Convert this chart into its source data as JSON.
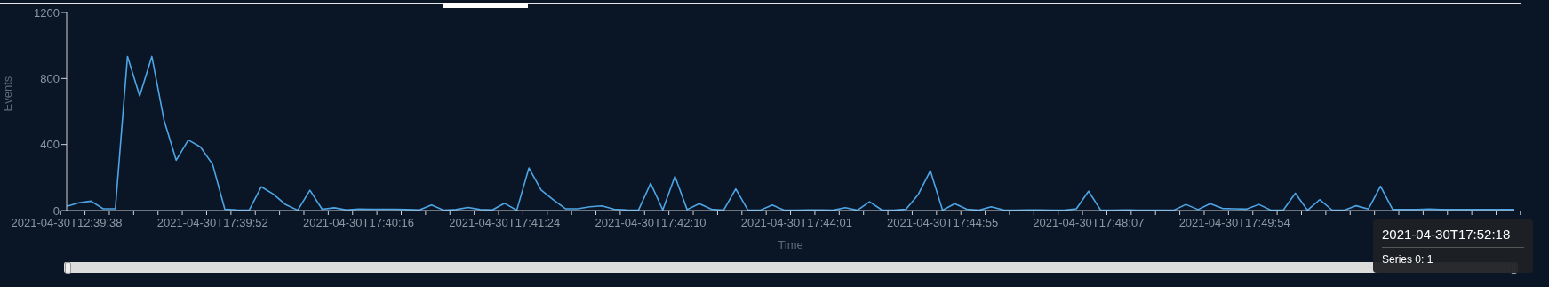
{
  "chart_data": {
    "type": "line",
    "xlabel": "Time",
    "ylabel": "Events",
    "categories": [
      "2021-04-30T12:39:38",
      null,
      null,
      null,
      null,
      null,
      null,
      null,
      null,
      null,
      null,
      null,
      "2021-04-30T17:39:52",
      null,
      null,
      null,
      null,
      null,
      null,
      null,
      null,
      null,
      null,
      null,
      "2021-04-30T17:40:16",
      null,
      null,
      null,
      null,
      null,
      null,
      null,
      null,
      null,
      null,
      null,
      "2021-04-30T17:41:24",
      null,
      null,
      null,
      null,
      null,
      null,
      null,
      null,
      null,
      null,
      null,
      "2021-04-30T17:42:10",
      null,
      null,
      null,
      null,
      null,
      null,
      null,
      null,
      null,
      null,
      null,
      "2021-04-30T17:44:01",
      null,
      null,
      null,
      null,
      null,
      null,
      null,
      null,
      null,
      null,
      null,
      "2021-04-30T17:44:55",
      null,
      null,
      null,
      null,
      null,
      null,
      null,
      null,
      null,
      null,
      null,
      "2021-04-30T17:48:07",
      null,
      null,
      null,
      null,
      null,
      null,
      null,
      null,
      null,
      null,
      null,
      "2021-04-30T17:49:54",
      null,
      null,
      null,
      null,
      null,
      null,
      null,
      null,
      null,
      null,
      null,
      null,
      null,
      null,
      null,
      null,
      null,
      null,
      null,
      null,
      null,
      null,
      null
    ],
    "series": [
      {
        "color": "#4da6e6",
        "values": [
          25,
          47,
          57,
          11,
          11,
          934,
          694,
          934,
          548,
          305,
          427,
          385,
          279,
          8,
          4,
          2,
          144,
          99,
          36,
          2,
          123,
          8,
          17,
          4,
          9,
          8,
          8,
          8,
          6,
          4,
          34,
          2,
          6,
          19,
          6,
          4,
          44,
          2,
          258,
          125,
          65,
          11,
          11,
          23,
          28,
          8,
          4,
          2,
          165,
          4,
          207,
          6,
          42,
          8,
          2,
          131,
          2,
          2,
          34,
          2,
          2,
          4,
          4,
          2,
          17,
          2,
          53,
          4,
          2,
          8,
          97,
          241,
          2,
          42,
          8,
          2,
          23,
          4,
          2,
          4,
          4,
          2,
          2,
          11,
          117,
          2,
          2,
          4,
          2,
          2,
          2,
          2,
          37,
          6,
          42,
          13,
          11,
          9,
          37,
          2,
          2,
          105,
          2,
          66,
          4,
          2,
          29,
          9,
          147,
          6,
          6,
          6,
          9,
          6,
          6,
          6,
          6,
          6,
          6,
          6
        ]
      }
    ],
    "ylim": [
      0,
      1200
    ],
    "yticks": [
      0,
      400,
      800,
      1200
    ],
    "marker": "none",
    "line_style": "solid",
    "annotations": [
      "2021-04-30T17:52:18",
      "Series 0: 1"
    ]
  }
}
